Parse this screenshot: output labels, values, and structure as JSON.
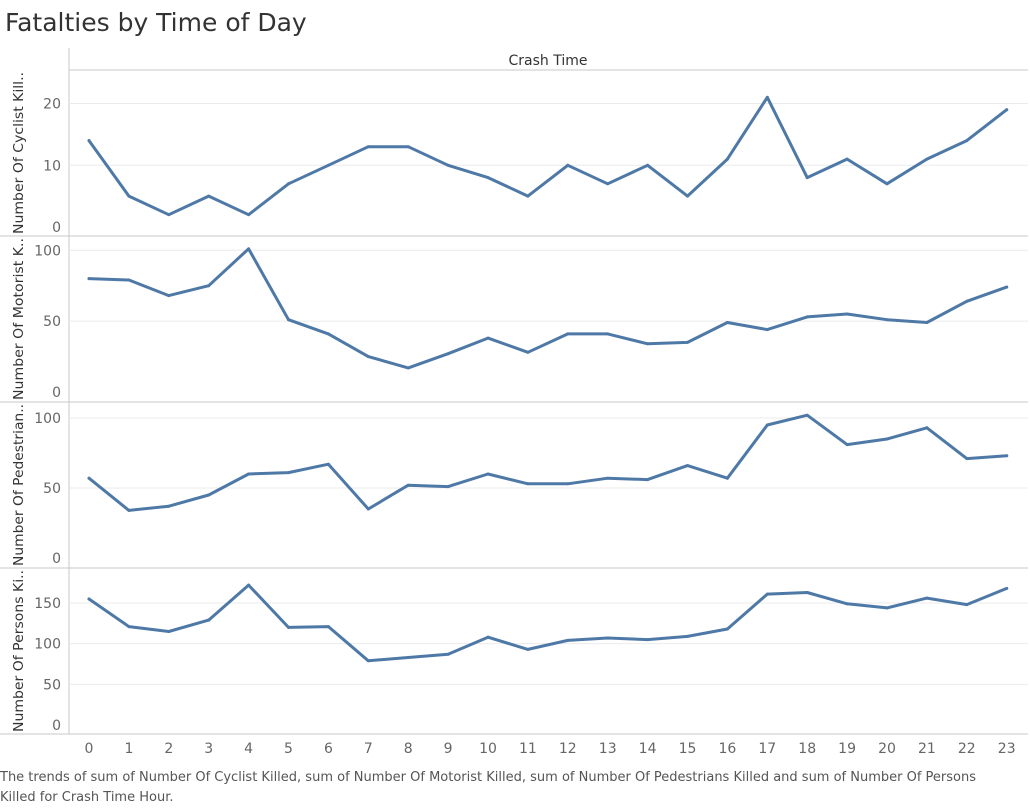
{
  "title": "Fatalties by Time of Day",
  "caption": "The trends of sum of Number Of Cyclist Killed, sum of Number Of Motorist Killed, sum of Number Of Pedestrians Killed and sum of Number Of Persons Killed for Crash Time Hour.",
  "colors": {
    "line": "#4e79a7",
    "grid": "#ebebeb",
    "border": "#c8c8c8"
  },
  "chart_data": {
    "type": "line",
    "column_header": "Crash Time",
    "x": [
      0,
      1,
      2,
      3,
      4,
      5,
      6,
      7,
      8,
      9,
      10,
      11,
      12,
      13,
      14,
      15,
      16,
      17,
      18,
      19,
      20,
      21,
      22,
      23
    ],
    "panels": [
      {
        "ylabel": "Number Of Cyclist Kill..",
        "ylim": [
          0,
          23
        ],
        "yticks": [
          0,
          10,
          20
        ],
        "values": [
          14,
          5,
          2,
          5,
          2,
          7,
          10,
          13,
          13,
          10,
          8,
          5,
          10,
          7,
          10,
          5,
          11,
          21,
          8,
          11,
          7,
          11,
          14,
          19
        ]
      },
      {
        "ylabel": "Number Of Motorist K..",
        "ylim": [
          0,
          103
        ],
        "yticks": [
          0,
          50,
          100
        ],
        "values": [
          80,
          79,
          68,
          75,
          101,
          51,
          41,
          25,
          17,
          27,
          38,
          28,
          41,
          41,
          34,
          35,
          49,
          44,
          53,
          55,
          51,
          49,
          64,
          74
        ]
      },
      {
        "ylabel": "Number Of Pedestrian..",
        "ylim": [
          0,
          105
        ],
        "yticks": [
          0,
          50,
          100
        ],
        "values": [
          57,
          34,
          37,
          45,
          60,
          61,
          67,
          35,
          52,
          51,
          60,
          53,
          53,
          57,
          56,
          66,
          57,
          95,
          102,
          81,
          85,
          93,
          71,
          73
        ]
      },
      {
        "ylabel": "Number Of Persons Ki..",
        "ylim": [
          0,
          182
        ],
        "yticks": [
          0,
          50,
          100,
          150
        ],
        "values": [
          155,
          121,
          115,
          129,
          172,
          120,
          121,
          79,
          83,
          87,
          108,
          93,
          104,
          107,
          105,
          109,
          118,
          161,
          163,
          149,
          144,
          156,
          148,
          168
        ]
      }
    ]
  }
}
